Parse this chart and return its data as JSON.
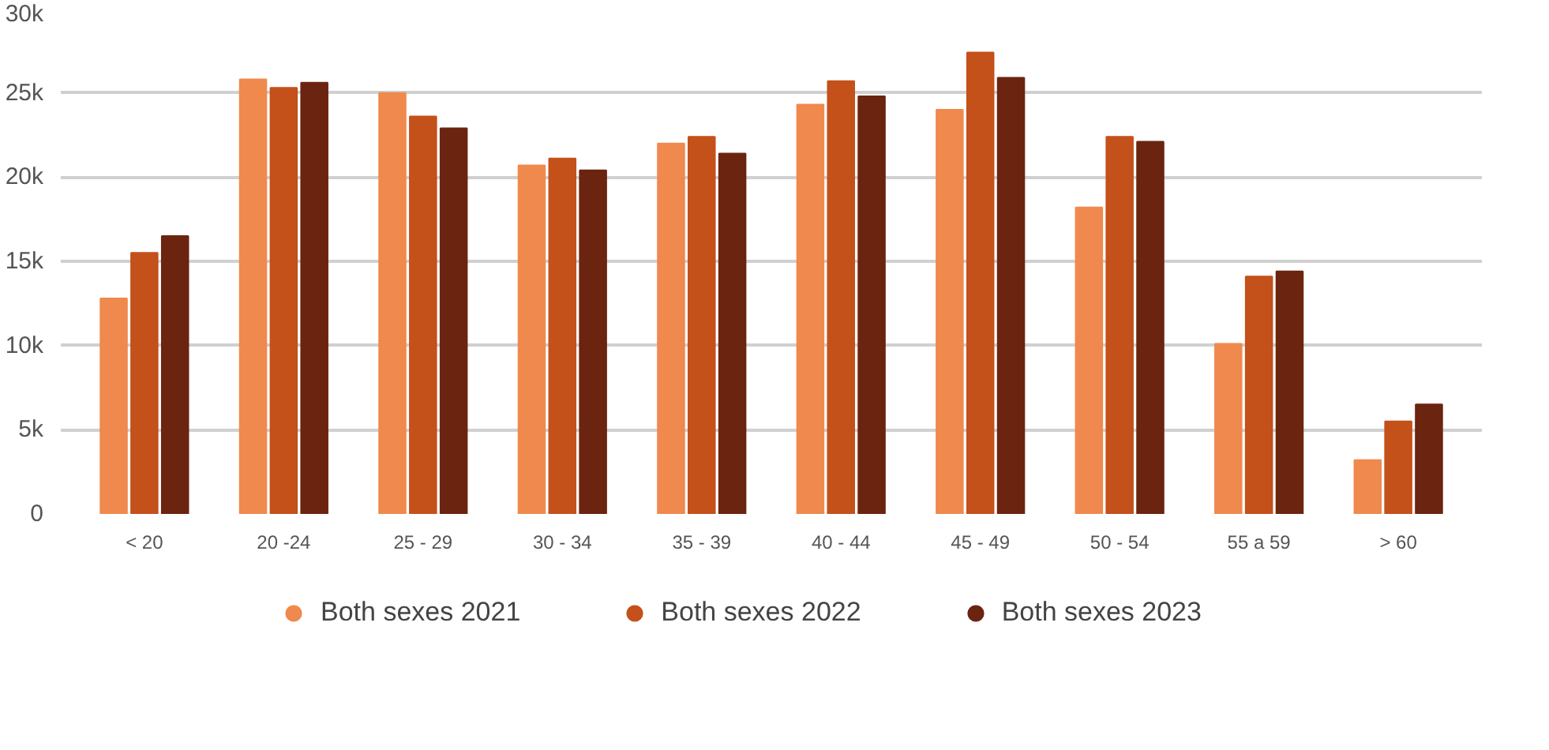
{
  "chart_data": {
    "type": "bar",
    "categories": [
      "< 20",
      "20 -24",
      "25 - 29",
      "30 - 34",
      "35 - 39",
      "40 - 44",
      "45 - 49",
      "50 - 54",
      "55 a 59",
      "> 60"
    ],
    "series": [
      {
        "name": "Both sexes 2021",
        "color": "#f0894d",
        "values": [
          12.8,
          25.8,
          25.0,
          20.7,
          22.0,
          24.3,
          24.0,
          18.2,
          10.1,
          3.2
        ]
      },
      {
        "name": "Both sexes 2022",
        "color": "#c4501a",
        "values": [
          15.5,
          25.3,
          23.6,
          21.1,
          22.4,
          25.7,
          27.4,
          22.4,
          14.1,
          5.5
        ]
      },
      {
        "name": "Both sexes 2023",
        "color": "#6b2410",
        "values": [
          16.5,
          25.6,
          22.9,
          20.4,
          21.4,
          24.8,
          25.9,
          22.1,
          14.4,
          6.5
        ]
      }
    ],
    "ylim": [
      0,
      30
    ],
    "yticks": [
      {
        "value": 0,
        "label": "0"
      },
      {
        "value": 5,
        "label": "5k"
      },
      {
        "value": 10,
        "label": "10k"
      },
      {
        "value": 15,
        "label": "15k"
      },
      {
        "value": 20,
        "label": "20k"
      },
      {
        "value": 25,
        "label": "25k"
      },
      {
        "value": 30,
        "label": "30k"
      }
    ],
    "grid": "y",
    "legend": "bottom"
  }
}
